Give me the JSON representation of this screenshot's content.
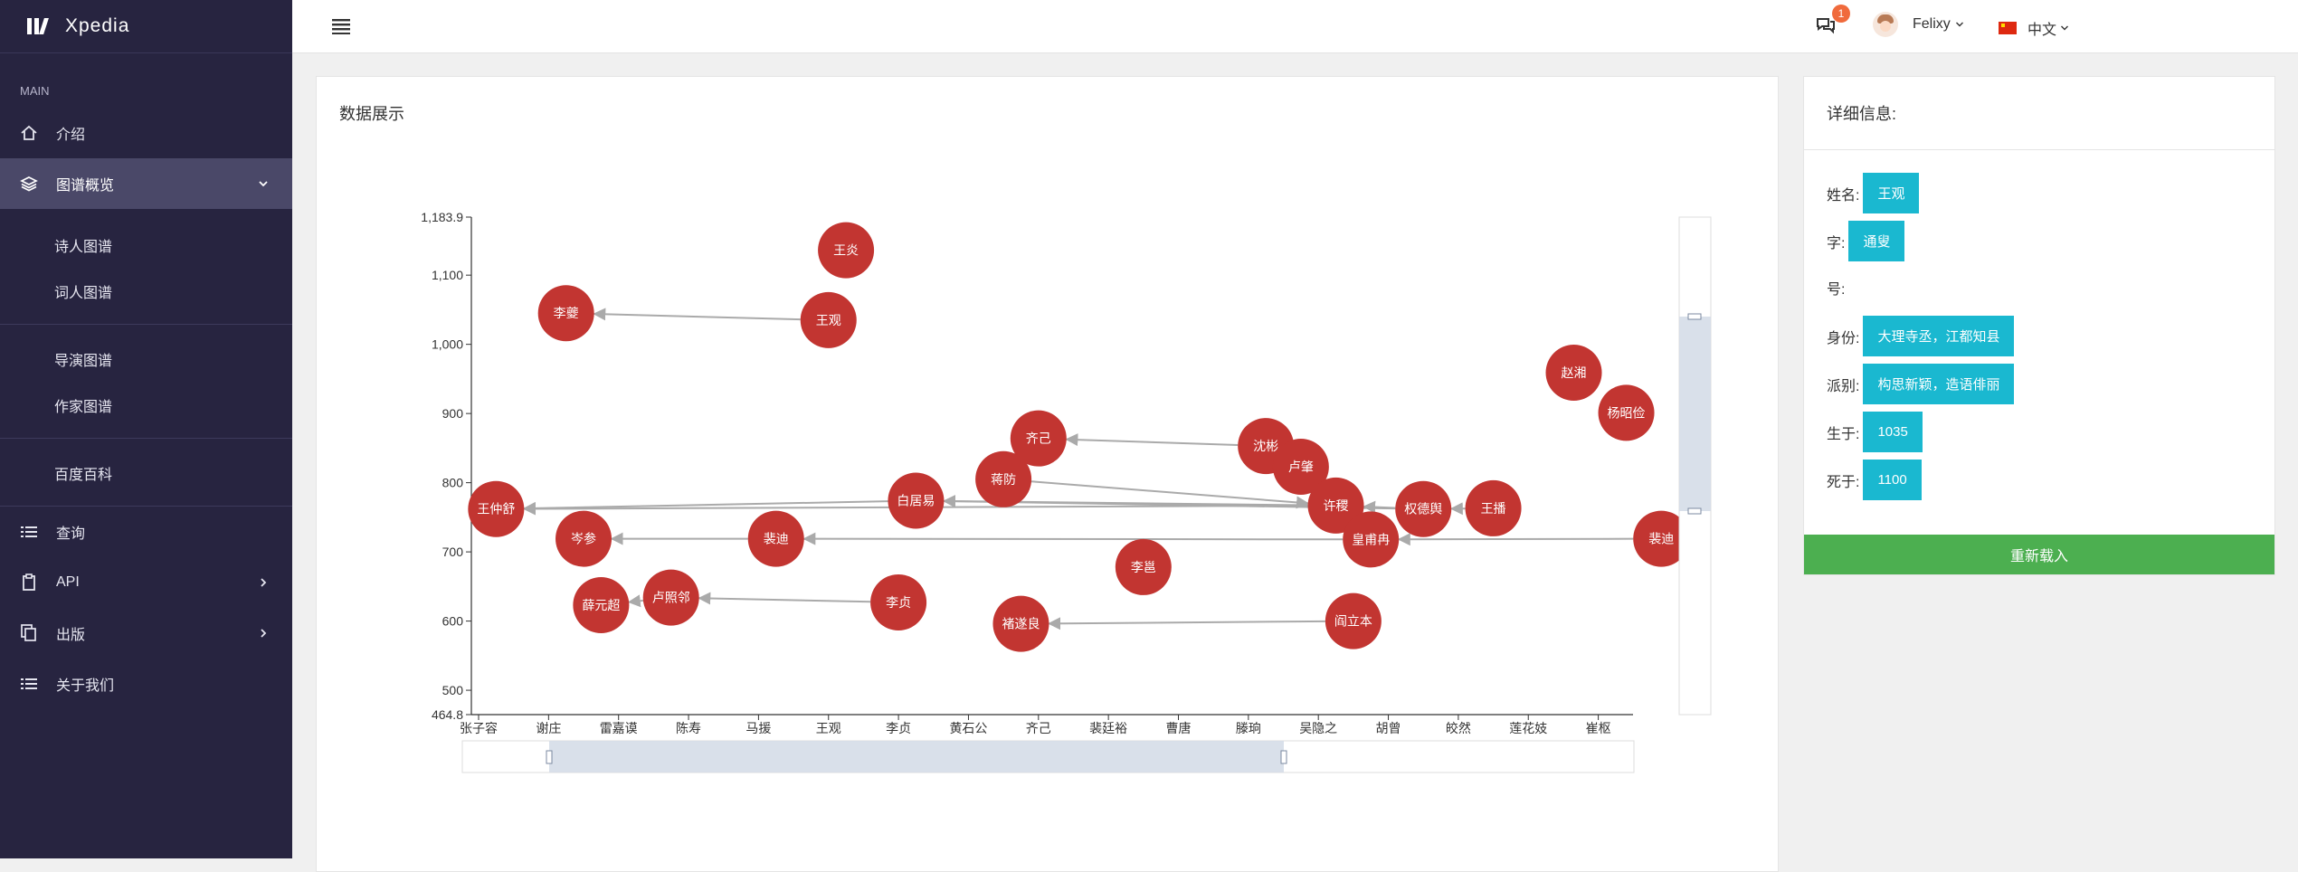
{
  "brand": {
    "name": "Xpedia"
  },
  "sidebar": {
    "section": "MAIN",
    "intro": "介绍",
    "overview": "图谱概览",
    "sub1": [
      "诗人图谱",
      "词人图谱"
    ],
    "sub2": [
      "导演图谱",
      "作家图谱"
    ],
    "sub3": [
      "百度百科"
    ],
    "query": "查询",
    "api": "API",
    "publish": "出版",
    "about": "关于我们"
  },
  "topbar": {
    "language": "中文",
    "notifications": "1",
    "user": "Felixy"
  },
  "main_panel": {
    "title": "数据展示"
  },
  "detail": {
    "title": "详细信息:",
    "labels": {
      "name": "姓名:",
      "zi": "字:",
      "hao": "号:",
      "identity": "身份:",
      "school": "派别:",
      "born": "生于:",
      "died": "死于:"
    },
    "name": "王观",
    "zi": "通叟",
    "identity": "大理寺丞，江都知县",
    "school": "构思新颖，造语俳丽",
    "born": "1035",
    "died": "1100",
    "reload": "重新载入"
  },
  "chart_data": {
    "type": "scatter",
    "x_categories": [
      "张子容",
      "谢庄",
      "雷嘉谟",
      "陈寿",
      "马援",
      "王观",
      "李贞",
      "黄石公",
      "齐己",
      "裴廷裕",
      "曹唐",
      "滕珦",
      "吴隐之",
      "胡曾",
      "皎然",
      "莲花妓",
      "崔枢"
    ],
    "y_ticks": [
      500,
      600,
      700,
      800,
      900,
      1000,
      1100
    ],
    "y_range_labels": [
      "464.8",
      "1,183.9"
    ],
    "ylim": [
      464.8,
      1183.9
    ],
    "node_color": "#c23531",
    "nodes": [
      {
        "name": "王炎",
        "x": 5.25,
        "y": 1136
      },
      {
        "name": "李夔",
        "x": 1.25,
        "y": 1045
      },
      {
        "name": "王观",
        "x": 5.0,
        "y": 1035
      },
      {
        "name": "赵湘",
        "x": 15.65,
        "y": 959
      },
      {
        "name": "杨昭俭",
        "x": 16.4,
        "y": 901
      },
      {
        "name": "齐己",
        "x": 8.0,
        "y": 864
      },
      {
        "name": "沈彬",
        "x": 11.25,
        "y": 853
      },
      {
        "name": "卢肇",
        "x": 11.75,
        "y": 823
      },
      {
        "name": "蒋防",
        "x": 7.5,
        "y": 805
      },
      {
        "name": "白居易",
        "x": 6.25,
        "y": 774
      },
      {
        "name": "许稷",
        "x": 12.25,
        "y": 767
      },
      {
        "name": "权德舆",
        "x": 13.5,
        "y": 762
      },
      {
        "name": "王播",
        "x": 14.5,
        "y": 763
      },
      {
        "name": "王仲舒",
        "x": 0.25,
        "y": 762
      },
      {
        "name": "岑参",
        "x": 1.5,
        "y": 719
      },
      {
        "name": "裴迪",
        "x": 4.25,
        "y": 719
      },
      {
        "name": "皇甫冉",
        "x": 12.75,
        "y": 718
      },
      {
        "name": "裴迪",
        "x": 16.9,
        "y": 719
      },
      {
        "name": "李邕",
        "x": 9.5,
        "y": 678
      },
      {
        "name": "薛元超",
        "x": 1.75,
        "y": 623
      },
      {
        "name": "卢照邻",
        "x": 2.75,
        "y": 634
      },
      {
        "name": "李贞",
        "x": 6.0,
        "y": 627
      },
      {
        "name": "褚遂良",
        "x": 7.75,
        "y": 596
      },
      {
        "name": "阎立本",
        "x": 12.5,
        "y": 600
      }
    ],
    "links": [
      [
        "王观",
        "李夔"
      ],
      [
        "沈彬",
        "齐己"
      ],
      [
        "许稷",
        "王仲舒"
      ],
      [
        "白居易",
        "王仲舒"
      ],
      [
        "许稷",
        "白居易"
      ],
      [
        "蒋防",
        "许稷"
      ],
      [
        "权德舆",
        "白居易"
      ],
      [
        "王播",
        "权德舆"
      ],
      [
        "权德舆",
        "许稷"
      ],
      [
        "裴迪",
        "岑参"
      ],
      [
        "皇甫冉",
        "裴迪"
      ],
      [
        "裴迪2",
        "皇甫冉"
      ],
      [
        "李贞",
        "卢照邻"
      ],
      [
        "卢照邻",
        "薛元超"
      ],
      [
        "阎立本",
        "褚遂良"
      ]
    ]
  }
}
